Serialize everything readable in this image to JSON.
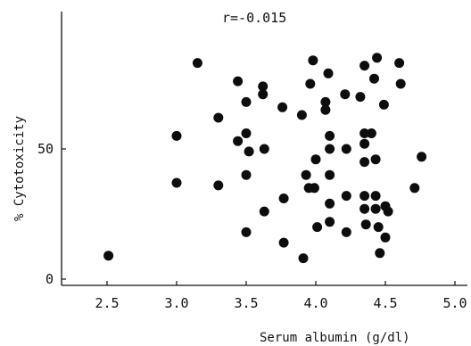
{
  "chart_data": {
    "type": "scatter",
    "annotation": "r=-0.015",
    "xlabel": "Serum albumin (g/dl)",
    "ylabel": "% Cytotoxicity",
    "xlim": [
      2.2,
      5.1
    ],
    "ylim": [
      0,
      92
    ],
    "x_ticks": [
      "2.5",
      "3.0",
      "3.5",
      "4.0",
      "4.5",
      "5.0"
    ],
    "x_tick_values": [
      2.5,
      3.0,
      3.5,
      4.0,
      4.5,
      5.0
    ],
    "y_ticks": [
      "0",
      "50"
    ],
    "y_tick_values": [
      0,
      50
    ],
    "grid": false,
    "points": [
      [
        2.51,
        9
      ],
      [
        3.0,
        37
      ],
      [
        3.0,
        55
      ],
      [
        3.15,
        83
      ],
      [
        3.3,
        36
      ],
      [
        3.3,
        62
      ],
      [
        3.44,
        76
      ],
      [
        3.44,
        53
      ],
      [
        3.5,
        56
      ],
      [
        3.5,
        68
      ],
      [
        3.52,
        49
      ],
      [
        3.5,
        40
      ],
      [
        3.5,
        18
      ],
      [
        3.62,
        74
      ],
      [
        3.62,
        71
      ],
      [
        3.63,
        50
      ],
      [
        3.63,
        26
      ],
      [
        3.76,
        66
      ],
      [
        3.77,
        31
      ],
      [
        3.77,
        14
      ],
      [
        3.9,
        63
      ],
      [
        3.91,
        8
      ],
      [
        3.93,
        40
      ],
      [
        3.95,
        35
      ],
      [
        3.96,
        75
      ],
      [
        3.98,
        84
      ],
      [
        3.99,
        35
      ],
      [
        4.0,
        46
      ],
      [
        4.01,
        20
      ],
      [
        4.07,
        68
      ],
      [
        4.07,
        65
      ],
      [
        4.09,
        79
      ],
      [
        4.1,
        55
      ],
      [
        4.1,
        50
      ],
      [
        4.1,
        40
      ],
      [
        4.1,
        29
      ],
      [
        4.1,
        22
      ],
      [
        4.21,
        71
      ],
      [
        4.22,
        50
      ],
      [
        4.22,
        32
      ],
      [
        4.22,
        18
      ],
      [
        4.32,
        70
      ],
      [
        4.35,
        82
      ],
      [
        4.35,
        56
      ],
      [
        4.35,
        52
      ],
      [
        4.35,
        45
      ],
      [
        4.35,
        32
      ],
      [
        4.35,
        27
      ],
      [
        4.36,
        21
      ],
      [
        4.4,
        56
      ],
      [
        4.42,
        77
      ],
      [
        4.44,
        85
      ],
      [
        4.43,
        46
      ],
      [
        4.43,
        32
      ],
      [
        4.43,
        27
      ],
      [
        4.45,
        20
      ],
      [
        4.46,
        10
      ],
      [
        4.49,
        67
      ],
      [
        4.5,
        16
      ],
      [
        4.5,
        28
      ],
      [
        4.52,
        26
      ],
      [
        4.6,
        83
      ],
      [
        4.61,
        75
      ],
      [
        4.71,
        35
      ],
      [
        4.76,
        47
      ]
    ]
  }
}
